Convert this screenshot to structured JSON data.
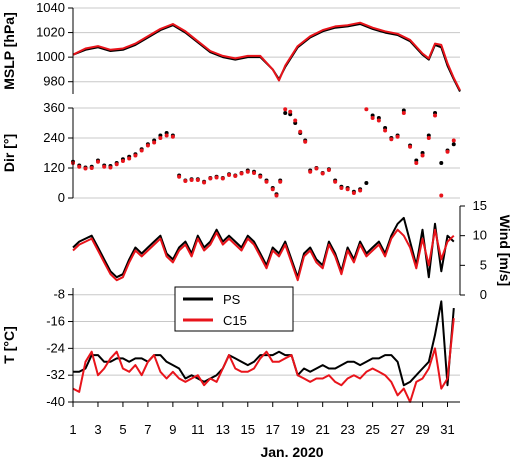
{
  "chart_data": {
    "type": "line",
    "xlabel": "Jan. 2020",
    "x_ticks": [
      "1",
      "3",
      "5",
      "7",
      "9",
      "11",
      "13",
      "15",
      "17",
      "19",
      "21",
      "23",
      "25",
      "27",
      "29",
      "31"
    ],
    "x_range": [
      1,
      32
    ],
    "legend": {
      "position": "center-left of lower panels",
      "entries": [
        {
          "name": "PS",
          "color": "#000000"
        },
        {
          "name": "C15",
          "color": "#e8141b"
        }
      ]
    },
    "colors": {
      "PS": "#000000",
      "C15": "#e8141b"
    },
    "grid": true,
    "panels": [
      {
        "id": "mslp",
        "ylabel": "MSLP [hPa]",
        "axis_side": "left",
        "ylim": [
          970,
          1040
        ],
        "yticks": [
          "980",
          "1000",
          "1020",
          "1040"
        ],
        "series": [
          {
            "name": "PS",
            "type": "line",
            "x": [
              1,
              2,
              3,
              4,
              5,
              6,
              7,
              8,
              9,
              10,
              11,
              12,
              13,
              14,
              15,
              16,
              17,
              17.5,
              18,
              19,
              20,
              21,
              22,
              23,
              24,
              25,
              26,
              27,
              28,
              29,
              29.5,
              30,
              30.5,
              31,
              31.5,
              32
            ],
            "y": [
              1002,
              1006,
              1008,
              1005,
              1006,
              1010,
              1016,
              1022,
              1026,
              1020,
              1012,
              1004,
              1000,
              998,
              1000,
              1000,
              990,
              982,
              992,
              1008,
              1016,
              1021,
              1024,
              1025,
              1027,
              1023,
              1020,
              1018,
              1013,
              1002,
              998,
              1010,
              1008,
              993,
              982,
              972
            ]
          },
          {
            "name": "C15",
            "type": "line",
            "x": [
              1,
              2,
              3,
              4,
              5,
              6,
              7,
              8,
              9,
              10,
              11,
              12,
              13,
              14,
              15,
              16,
              17,
              17.5,
              18,
              19,
              20,
              21,
              22,
              23,
              24,
              25,
              26,
              27,
              28,
              29,
              29.5,
              30,
              30.5,
              31,
              31.5,
              32
            ],
            "y": [
              1002,
              1007,
              1009,
              1006,
              1007,
              1011,
              1017,
              1023,
              1027,
              1021,
              1013,
              1005,
              1001,
              999,
              1001,
              1001,
              990,
              981,
              993,
              1009,
              1017,
              1022,
              1025,
              1026,
              1028,
              1024,
              1021,
              1019,
              1014,
              1003,
              999,
              1011,
              1010,
              995,
              983,
              973
            ]
          }
        ]
      },
      {
        "id": "dir",
        "ylabel": "Dir [°]",
        "axis_side": "left",
        "ylim": [
          0,
          360
        ],
        "yticks": [
          "0",
          "120",
          "240",
          "360"
        ],
        "series": [
          {
            "name": "PS",
            "type": "scatter",
            "x": [
              1,
              1.5,
              2,
              2.5,
              3,
              3.5,
              4,
              4.5,
              5,
              5.5,
              6,
              6.5,
              7,
              7.5,
              8,
              8.5,
              9,
              9.5,
              10,
              10.5,
              11,
              11.5,
              12,
              12.5,
              13,
              13.5,
              14,
              14.5,
              15,
              15.5,
              16,
              16.5,
              17,
              17.3,
              17.6,
              18,
              18.4,
              18.8,
              19.2,
              19.6,
              20,
              20.5,
              21,
              21.5,
              22,
              22.5,
              23,
              23.5,
              24,
              24.5,
              25,
              25.5,
              26,
              26.5,
              27,
              27.5,
              28,
              28.5,
              29,
              29.5,
              30,
              30.5,
              31,
              31.5
            ],
            "y": [
              145,
              130,
              122,
              125,
              150,
              130,
              128,
              140,
              155,
              165,
              175,
              195,
              215,
              230,
              250,
              260,
              250,
              90,
              70,
              75,
              75,
              65,
              80,
              85,
              80,
              95,
              90,
              100,
              110,
              105,
              90,
              70,
              40,
              15,
              70,
              340,
              335,
              300,
              260,
              230,
              110,
              120,
              100,
              115,
              70,
              45,
              40,
              25,
              35,
              60,
              330,
              320,
              280,
              240,
              250,
              350,
              210,
              150,
              180,
              250,
              340,
              140,
              190,
              215
            ]
          },
          {
            "name": "C15",
            "type": "scatter",
            "x": [
              1,
              1.5,
              2,
              2.5,
              3,
              3.5,
              4,
              4.5,
              5,
              5.5,
              6,
              6.5,
              7,
              7.5,
              8,
              8.5,
              9,
              9.5,
              10,
              10.5,
              11,
              11.5,
              12,
              12.5,
              13,
              13.5,
              14,
              14.5,
              15,
              15.5,
              16,
              16.5,
              17,
              17.3,
              17.6,
              18,
              18.4,
              18.8,
              19.2,
              19.6,
              20,
              20.5,
              21,
              21.5,
              22,
              22.5,
              23,
              23.5,
              24,
              24.5,
              25,
              25.5,
              26,
              26.5,
              27,
              27.5,
              28,
              28.5,
              29,
              29.5,
              30,
              30.5,
              31,
              31.5
            ],
            "y": [
              140,
              125,
              118,
              120,
              145,
              125,
              122,
              135,
              148,
              158,
              170,
              190,
              210,
              222,
              240,
              250,
              245,
              85,
              68,
              72,
              72,
              62,
              78,
              82,
              78,
              92,
              88,
              98,
              105,
              100,
              85,
              65,
              35,
              10,
              65,
              355,
              345,
              310,
              265,
              225,
              105,
              118,
              98,
              112,
              65,
              40,
              35,
              20,
              30,
              355,
              320,
              310,
              270,
              235,
              245,
              340,
              205,
              140,
              170,
              240,
              330,
              10,
              185,
              230
            ]
          }
        ]
      },
      {
        "id": "wind",
        "ylabel": "Wind [m/s]",
        "axis_side": "right",
        "ylim": [
          0,
          15
        ],
        "yticks": [
          "0",
          "5",
          "10",
          "15"
        ],
        "series": [
          {
            "name": "PS",
            "type": "line",
            "x": [
              1,
              1.5,
              2,
              2.5,
              3,
              3.5,
              4,
              4.5,
              5,
              5.5,
              6,
              6.5,
              7,
              7.5,
              8,
              8.5,
              9,
              9.5,
              10,
              10.5,
              11,
              11.5,
              12,
              12.5,
              13,
              13.5,
              14,
              14.5,
              15,
              15.5,
              16,
              16.5,
              17,
              17.5,
              18,
              18.5,
              19,
              19.5,
              20,
              20.5,
              21,
              21.5,
              22,
              22.5,
              23,
              23.5,
              24,
              24.5,
              25,
              25.5,
              26,
              26.5,
              27,
              27.5,
              28,
              28.5,
              29,
              29.5,
              30,
              30.5,
              31,
              31.5
            ],
            "y": [
              8,
              9,
              9.5,
              10,
              8,
              6,
              4,
              3,
              3.5,
              6,
              8,
              7,
              8,
              9,
              10,
              7,
              6,
              8,
              9,
              7,
              10,
              8,
              9,
              11,
              9,
              10,
              9,
              8,
              10,
              9,
              7,
              5,
              8,
              7,
              9,
              6,
              3,
              7,
              8,
              6,
              5,
              9,
              7,
              4,
              8,
              6,
              9,
              7,
              8,
              9,
              7,
              10,
              12,
              13,
              9,
              5,
              11,
              3,
              12,
              4,
              10,
              9
            ]
          },
          {
            "name": "C15",
            "type": "line",
            "x": [
              1,
              1.5,
              2,
              2.5,
              3,
              3.5,
              4,
              4.5,
              5,
              5.5,
              6,
              6.5,
              7,
              7.5,
              8,
              8.5,
              9,
              9.5,
              10,
              10.5,
              11,
              11.5,
              12,
              12.5,
              13,
              13.5,
              14,
              14.5,
              15,
              15.5,
              16,
              16.5,
              17,
              17.5,
              18,
              18.5,
              19,
              19.5,
              20,
              20.5,
              21,
              21.5,
              22,
              22.5,
              23,
              23.5,
              24,
              24.5,
              25,
              25.5,
              26,
              26.5,
              27,
              27.5,
              28,
              28.5,
              29,
              29.5,
              30,
              30.5,
              31,
              31.5
            ],
            "y": [
              7.5,
              8.5,
              9,
              9.5,
              7.5,
              5.5,
              3.5,
              2.5,
              3,
              5.5,
              7.5,
              6.5,
              7.5,
              8.5,
              9.5,
              6.5,
              5.5,
              7.5,
              8.5,
              6.5,
              9.5,
              7.5,
              8.5,
              10.5,
              8.5,
              9.5,
              8.5,
              7.5,
              9.5,
              8.5,
              6.5,
              4.5,
              7.5,
              6.5,
              8.5,
              5.5,
              2.5,
              6.5,
              7.5,
              5.5,
              4.5,
              8.5,
              6.5,
              3.5,
              7.5,
              5.5,
              8.5,
              6.5,
              7.5,
              8.5,
              6.5,
              9.5,
              11,
              10,
              8,
              4.5,
              9.5,
              5,
              11,
              6,
              9,
              10
            ]
          }
        ]
      },
      {
        "id": "temp",
        "ylabel": "T [°C]",
        "axis_side": "left",
        "ylim": [
          -40,
          -6
        ],
        "yticks": [
          "-8",
          "-16",
          "-24",
          "-32",
          "-40"
        ],
        "series": [
          {
            "name": "PS",
            "type": "line",
            "x": [
              1,
              1.5,
              2,
              2.5,
              3,
              3.5,
              4,
              4.5,
              5,
              5.5,
              6,
              6.5,
              7,
              7.5,
              8,
              8.5,
              9,
              9.5,
              10,
              10.5,
              11,
              11.5,
              12,
              12.5,
              13,
              13.5,
              14,
              14.5,
              15,
              15.5,
              16,
              16.5,
              17,
              17.5,
              18,
              18.5,
              19,
              19.5,
              20,
              20.5,
              21,
              21.5,
              22,
              22.5,
              23,
              23.5,
              24,
              24.5,
              25,
              25.5,
              26,
              26.5,
              27,
              27.5,
              28,
              28.5,
              29,
              29.5,
              30,
              30.5,
              31,
              31.5
            ],
            "y": [
              -31,
              -31,
              -30,
              -26,
              -26,
              -28,
              -28,
              -27,
              -27,
              -28,
              -27,
              -27,
              -28,
              -26,
              -26,
              -28,
              -29,
              -30,
              -33,
              -32,
              -33,
              -34,
              -33,
              -32,
              -30,
              -26,
              -27,
              -28,
              -29,
              -28,
              -26,
              -26,
              -26,
              -25,
              -26,
              -26,
              -32,
              -30,
              -31,
              -30,
              -29,
              -30,
              -30,
              -29,
              -28,
              -28,
              -29,
              -28,
              -27,
              -27,
              -26,
              -26,
              -28,
              -35,
              -34,
              -32,
              -30,
              -28,
              -20,
              -10,
              -35,
              -12
            ]
          },
          {
            "name": "C15",
            "type": "line",
            "x": [
              1,
              1.5,
              2,
              2.5,
              3,
              3.5,
              4,
              4.5,
              5,
              5.5,
              6,
              6.5,
              7,
              7.5,
              8,
              8.5,
              9,
              9.5,
              10,
              10.5,
              11,
              11.5,
              12,
              12.5,
              13,
              13.5,
              14,
              14.5,
              15,
              15.5,
              16,
              16.5,
              17,
              17.5,
              18,
              18.5,
              19,
              19.5,
              20,
              20.5,
              21,
              21.5,
              22,
              22.5,
              23,
              23.5,
              24,
              24.5,
              25,
              25.5,
              26,
              26.5,
              27,
              27.5,
              28,
              28.5,
              29,
              29.5,
              30,
              30.5,
              31,
              31.5
            ],
            "y": [
              -36,
              -37,
              -28,
              -25,
              -32,
              -30,
              -27,
              -25,
              -30,
              -31,
              -29,
              -32,
              -28,
              -26,
              -31,
              -33,
              -31,
              -33,
              -34,
              -33,
              -32,
              -35,
              -33,
              -34,
              -30,
              -26,
              -30,
              -31,
              -31,
              -30,
              -27,
              -25,
              -28,
              -28,
              -27,
              -26,
              -32,
              -33,
              -34,
              -33,
              -33,
              -32,
              -34,
              -35,
              -33,
              -32,
              -33,
              -31,
              -30,
              -31,
              -32,
              -34,
              -38,
              -36,
              -40,
              -34,
              -33,
              -30,
              -24,
              -36,
              -33,
              -15
            ]
          }
        ]
      }
    ]
  }
}
